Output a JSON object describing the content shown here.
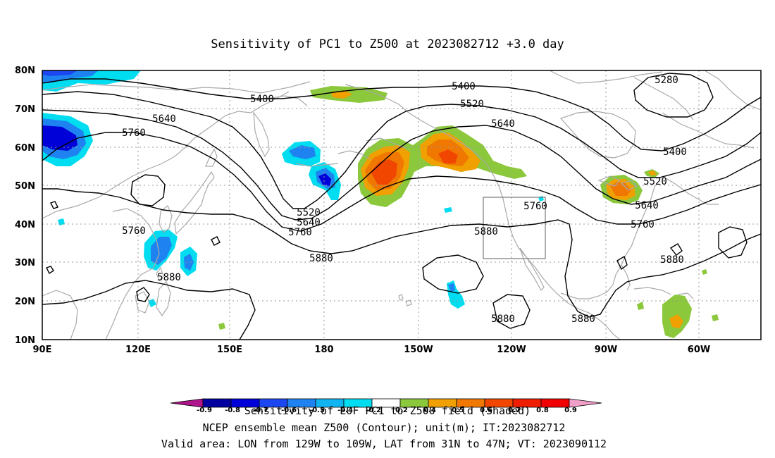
{
  "title": "Sensitivity of PC1 to Z500 at 2023082712 +3.0 day",
  "lat_labels": [
    "80N",
    "70N",
    "60N",
    "50N",
    "40N",
    "30N",
    "20N",
    "10N"
  ],
  "lon_labels": [
    "90E",
    "120E",
    "150E",
    "180",
    "150W",
    "120W",
    "90W",
    "60W"
  ],
  "contour_labels": [
    {
      "id": "c5280",
      "text": "5280"
    },
    {
      "id": "c5400a",
      "text": "5400"
    },
    {
      "id": "c5400b",
      "text": "5400"
    },
    {
      "id": "c5400c",
      "text": "5400"
    },
    {
      "id": "c5520a",
      "text": "5520"
    },
    {
      "id": "c5520b",
      "text": "5520"
    },
    {
      "id": "c5520c",
      "text": "5520"
    },
    {
      "id": "c5640a",
      "text": "5640"
    },
    {
      "id": "c5640b",
      "text": "5640"
    },
    {
      "id": "c5640c",
      "text": "5640"
    },
    {
      "id": "c5640d",
      "text": "5640"
    },
    {
      "id": "c5760a",
      "text": "5760"
    },
    {
      "id": "c5760b",
      "text": "5760"
    },
    {
      "id": "c5760c",
      "text": "5760"
    },
    {
      "id": "c5760d",
      "text": "5760"
    },
    {
      "id": "c5760e",
      "text": "5760"
    },
    {
      "id": "c5880a",
      "text": "5880"
    },
    {
      "id": "c5880b",
      "text": "5880"
    },
    {
      "id": "c5880c",
      "text": "5880"
    },
    {
      "id": "c5880d",
      "text": "5880"
    },
    {
      "id": "c5880e",
      "text": "5880"
    },
    {
      "id": "c5880f",
      "text": "5880"
    }
  ],
  "colorbar": {
    "ticks": [
      "-0.9",
      "-0.8",
      "-0.7",
      "-0.6",
      "-0.5",
      "-0.4",
      "-0.2",
      "0.2",
      "0.4",
      "0.5",
      "0.6",
      "0.7",
      "0.8",
      "0.9"
    ],
    "colors": [
      "#0000a0",
      "#0000d8",
      "#1c46f0",
      "#1e82f0",
      "#10b4f0",
      "#00dcf0",
      "#ffffff",
      "#8cc83c",
      "#f0a000",
      "#f07800",
      "#f04600",
      "#f01e00",
      "#f00000"
    ],
    "low_color": "#b0148c",
    "high_color": "#f0a0c8"
  },
  "footer": {
    "line1": "Sensitivity of EOF PC1 to Z500 field (Shaded)",
    "line2": "NCEP ensemble mean Z500 (Contour); unit(m); IT:2023082712",
    "line3": "Valid area: LON from 129W to 109W, LAT from 31N to 47N; VT: 2023090112"
  },
  "valid_area": {
    "lon_min": -129,
    "lon_max": -109,
    "lat_min": 31,
    "lat_max": 47
  }
}
